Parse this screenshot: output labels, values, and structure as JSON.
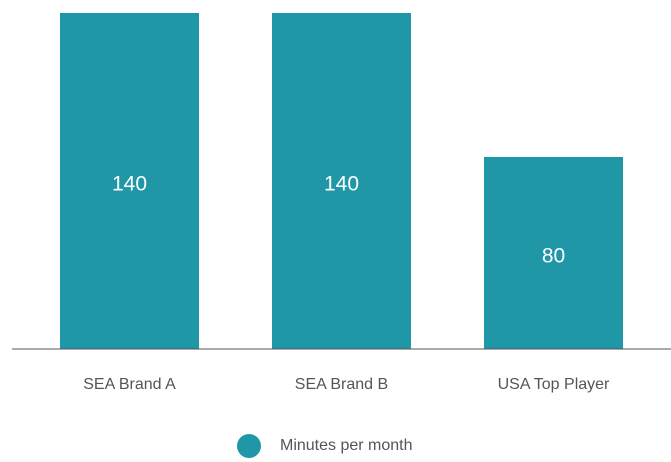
{
  "chart_data": {
    "type": "bar",
    "categories": [
      "SEA Brand A",
      "SEA Brand B",
      "USA Top Player"
    ],
    "series": [
      {
        "name": "Minutes per month",
        "color": "#2097a7",
        "values": [
          140,
          140,
          80
        ]
      }
    ],
    "ylim": [
      0,
      140
    ]
  }
}
